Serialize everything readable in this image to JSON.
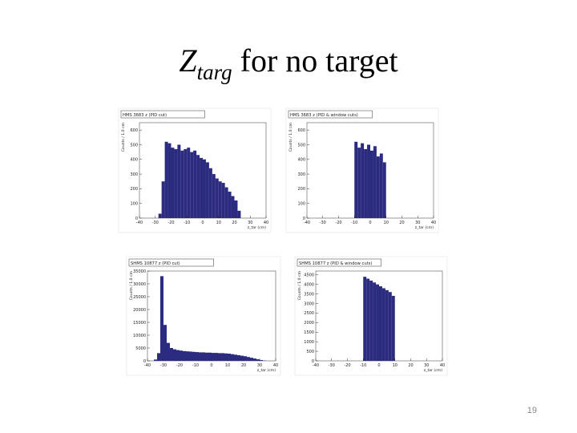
{
  "slide": {
    "title_main": "Z",
    "title_sub": "targ",
    "title_rest": "for no target",
    "page_number": "19"
  },
  "chart_data": [
    {
      "type": "histogram",
      "title": "HMS 3683 z (PID cut)",
      "x_label": "z_tar (cm)",
      "y_label": "Counts / 1.0 cm",
      "color": "#2b2b7f",
      "bins": [
        -40,
        -38,
        -36,
        -34,
        -32,
        -30,
        -28,
        -26,
        -24,
        -22,
        -20,
        -18,
        -16,
        -14,
        -12,
        -10,
        -8,
        -6,
        -4,
        -2,
        0,
        2,
        4,
        6,
        8,
        10,
        12,
        14,
        16,
        18,
        20,
        22,
        24,
        26,
        28,
        30,
        32,
        34,
        36,
        38,
        40
      ],
      "values": [
        0,
        0,
        0,
        0,
        0,
        0,
        30,
        250,
        520,
        510,
        480,
        470,
        500,
        460,
        470,
        480,
        450,
        460,
        430,
        410,
        400,
        380,
        340,
        300,
        270,
        250,
        240,
        210,
        180,
        150,
        120,
        50,
        0,
        0,
        0,
        0,
        0,
        0,
        0,
        0
      ],
      "xlim": [
        -40,
        40
      ],
      "xticks": [
        -40,
        -30,
        -20,
        -10,
        0,
        10,
        20,
        30,
        40
      ],
      "ylim": [
        0,
        650
      ],
      "yticks": [
        0,
        100,
        200,
        300,
        400,
        500,
        600
      ]
    },
    {
      "type": "histogram",
      "title": "HMS 3683 z (PID & window cuts)",
      "x_label": "z_tar (cm)",
      "y_label": "Counts / 1.0 cm",
      "color": "#2b2b7f",
      "bins": [
        -40,
        -38,
        -36,
        -34,
        -32,
        -30,
        -28,
        -26,
        -24,
        -22,
        -20,
        -18,
        -16,
        -14,
        -12,
        -10,
        -8,
        -6,
        -4,
        -2,
        0,
        2,
        4,
        6,
        8,
        10,
        12,
        14,
        16,
        18,
        20,
        22,
        24,
        26,
        28,
        30,
        32,
        34,
        36,
        38,
        40
      ],
      "values": [
        0,
        0,
        0,
        0,
        0,
        0,
        0,
        0,
        0,
        0,
        0,
        0,
        0,
        0,
        0,
        520,
        480,
        510,
        470,
        500,
        460,
        490,
        420,
        440,
        380,
        0,
        0,
        0,
        0,
        0,
        0,
        0,
        0,
        0,
        0,
        0,
        0,
        0,
        0,
        0
      ],
      "xlim": [
        -40,
        40
      ],
      "xticks": [
        -40,
        -30,
        -20,
        -10,
        0,
        10,
        20,
        30,
        40
      ],
      "ylim": [
        0,
        650
      ],
      "yticks": [
        0,
        100,
        200,
        300,
        400,
        500,
        600
      ]
    },
    {
      "type": "histogram",
      "title": "SHMS 10877 z (PID cut)",
      "x_label": "z_tar (cm)",
      "y_label": "Counts / 1.0 cm",
      "color": "#2b2b7f",
      "bins": [
        -40,
        -38,
        -36,
        -34,
        -32,
        -30,
        -28,
        -26,
        -24,
        -22,
        -20,
        -18,
        -16,
        -14,
        -12,
        -10,
        -8,
        -6,
        -4,
        -2,
        0,
        2,
        4,
        6,
        8,
        10,
        12,
        14,
        16,
        18,
        20,
        22,
        24,
        26,
        28,
        30,
        32,
        34,
        36,
        38,
        40
      ],
      "values": [
        0,
        0,
        500,
        3000,
        33000,
        14000,
        7000,
        5000,
        4500,
        4200,
        4000,
        3800,
        3700,
        3600,
        3500,
        3400,
        3300,
        3300,
        3200,
        3200,
        3100,
        3100,
        3000,
        3000,
        2900,
        2800,
        2600,
        2400,
        2200,
        2000,
        1800,
        1500,
        1200,
        900,
        600,
        300,
        100,
        0,
        0,
        0
      ],
      "xlim": [
        -40,
        40
      ],
      "xticks": [
        -40,
        -30,
        -20,
        -10,
        0,
        10,
        20,
        30,
        40
      ],
      "ylim": [
        0,
        35000
      ],
      "yticks": [
        0,
        5000,
        10000,
        15000,
        20000,
        25000,
        30000,
        35000
      ]
    },
    {
      "type": "histogram",
      "title": "SHMS 10877 z (PID & window cuts)",
      "x_label": "z_tar (cm)",
      "y_label": "Counts / 1.0 cm",
      "color": "#2b2b7f",
      "bins": [
        -40,
        -38,
        -36,
        -34,
        -32,
        -30,
        -28,
        -26,
        -24,
        -22,
        -20,
        -18,
        -16,
        -14,
        -12,
        -10,
        -8,
        -6,
        -4,
        -2,
        0,
        2,
        4,
        6,
        8,
        10,
        12,
        14,
        16,
        18,
        20,
        22,
        24,
        26,
        28,
        30,
        32,
        34,
        36,
        38,
        40
      ],
      "values": [
        0,
        0,
        0,
        0,
        0,
        0,
        0,
        0,
        0,
        0,
        0,
        0,
        0,
        0,
        0,
        4400,
        4300,
        4200,
        4100,
        4000,
        3900,
        3800,
        3700,
        3600,
        3400,
        0,
        0,
        0,
        0,
        0,
        0,
        0,
        0,
        0,
        0,
        0,
        0,
        0,
        0,
        0
      ],
      "xlim": [
        -40,
        40
      ],
      "xticks": [
        -40,
        -30,
        -20,
        -10,
        0,
        10,
        20,
        30,
        40
      ],
      "ylim": [
        0,
        4700
      ],
      "yticks": [
        0,
        500,
        1000,
        1500,
        2000,
        2500,
        3000,
        3500,
        4000,
        4500
      ]
    }
  ]
}
